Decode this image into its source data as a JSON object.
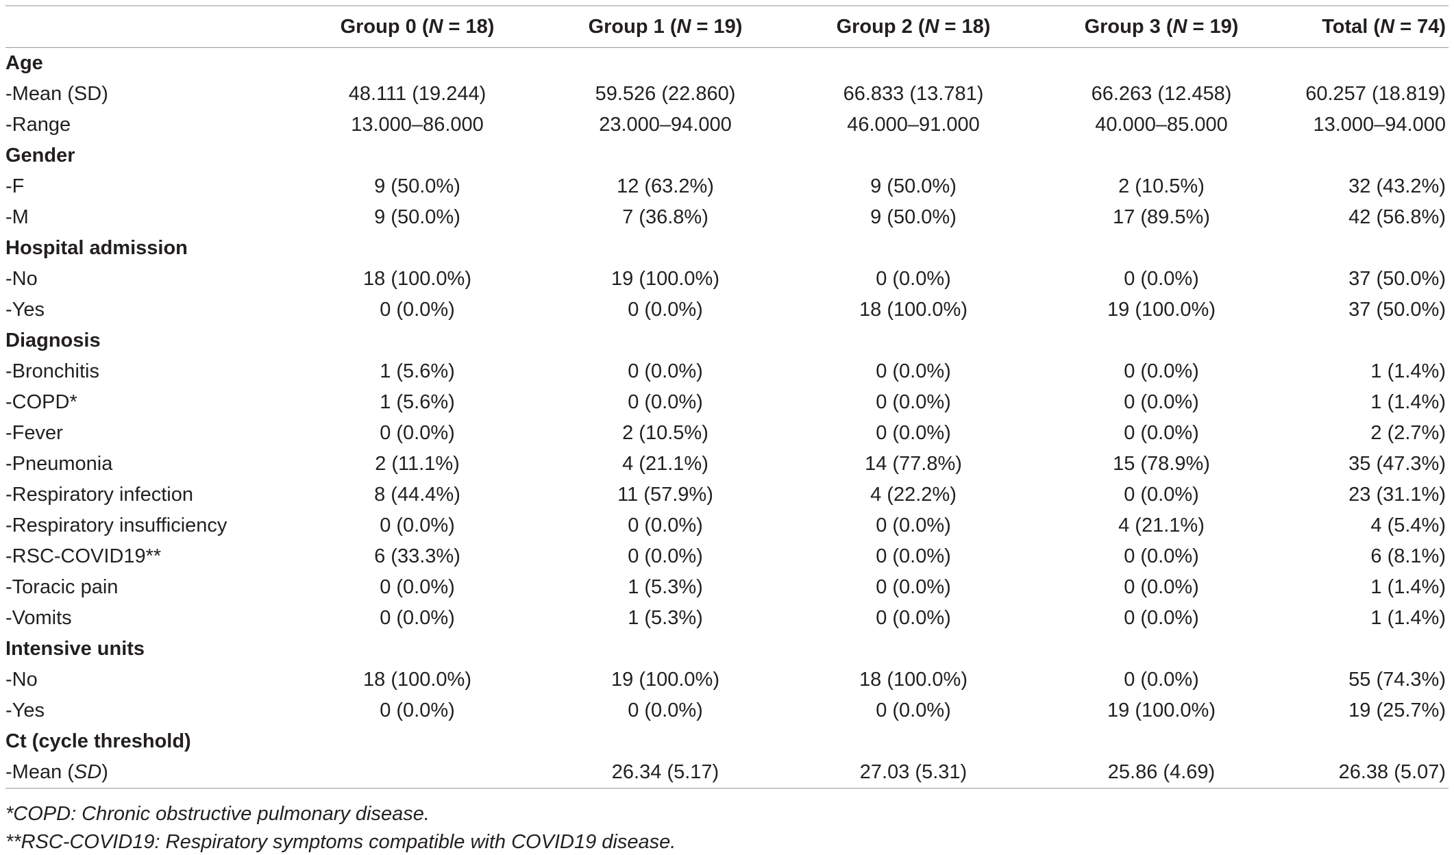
{
  "columns": {
    "group0": {
      "label": "Group 0 (",
      "n_letter": "N",
      "n_rest": " = 18)"
    },
    "group1": {
      "label": "Group 1 (",
      "n_letter": "N",
      "n_rest": " = 19)"
    },
    "group2": {
      "label": "Group 2 (",
      "n_letter": "N",
      "n_rest": " = 18)"
    },
    "group3": {
      "label": "Group 3 (",
      "n_letter": "N",
      "n_rest": " = 19)"
    },
    "total": {
      "label": "Total (",
      "n_letter": "N",
      "n_rest": " = 74)"
    }
  },
  "rows": [
    {
      "type": "section",
      "label": "Age"
    },
    {
      "type": "data",
      "label": "-Mean (SD)",
      "values": [
        "48.111 (19.244)",
        "59.526 (22.860)",
        "66.833 (13.781)",
        "66.263 (12.458)",
        "60.257 (18.819)"
      ]
    },
    {
      "type": "data",
      "label": "-Range",
      "values": [
        "13.000–86.000",
        "23.000–94.000",
        "46.000–91.000",
        "40.000–85.000",
        "13.000–94.000"
      ]
    },
    {
      "type": "section",
      "label": "Gender"
    },
    {
      "type": "data",
      "label": "-F",
      "values": [
        "9 (50.0%)",
        "12 (63.2%)",
        "9 (50.0%)",
        "2 (10.5%)",
        "32 (43.2%)"
      ]
    },
    {
      "type": "data",
      "label": "-M",
      "values": [
        "9 (50.0%)",
        "7 (36.8%)",
        "9 (50.0%)",
        "17 (89.5%)",
        "42 (56.8%)"
      ]
    },
    {
      "type": "section",
      "label": "Hospital admission"
    },
    {
      "type": "data",
      "label": "-No",
      "values": [
        "18 (100.0%)",
        "19 (100.0%)",
        "0 (0.0%)",
        "0 (0.0%)",
        "37 (50.0%)"
      ]
    },
    {
      "type": "data",
      "label": "-Yes",
      "values": [
        "0 (0.0%)",
        "0 (0.0%)",
        "18 (100.0%)",
        "19 (100.0%)",
        "37 (50.0%)"
      ]
    },
    {
      "type": "section",
      "label": "Diagnosis"
    },
    {
      "type": "data",
      "label": "-Bronchitis",
      "values": [
        "1 (5.6%)",
        "0 (0.0%)",
        "0 (0.0%)",
        "0 (0.0%)",
        "1 (1.4%)"
      ]
    },
    {
      "type": "data",
      "label": "-COPD*",
      "values": [
        "1 (5.6%)",
        "0 (0.0%)",
        "0 (0.0%)",
        "0 (0.0%)",
        "1 (1.4%)"
      ]
    },
    {
      "type": "data",
      "label": "-Fever",
      "values": [
        "0 (0.0%)",
        "2 (10.5%)",
        "0 (0.0%)",
        "0 (0.0%)",
        "2 (2.7%)"
      ]
    },
    {
      "type": "data",
      "label": "-Pneumonia",
      "values": [
        "2 (11.1%)",
        "4 (21.1%)",
        "14 (77.8%)",
        "15 (78.9%)",
        "35 (47.3%)"
      ]
    },
    {
      "type": "data",
      "label": "-Respiratory infection",
      "values": [
        "8 (44.4%)",
        "11 (57.9%)",
        "4 (22.2%)",
        "0 (0.0%)",
        "23 (31.1%)"
      ]
    },
    {
      "type": "data",
      "label": "-Respiratory insufficiency",
      "values": [
        "0 (0.0%)",
        "0 (0.0%)",
        "0 (0.0%)",
        "4 (21.1%)",
        "4 (5.4%)"
      ]
    },
    {
      "type": "data",
      "label": "-RSC-COVID19**",
      "values": [
        "6 (33.3%)",
        "0 (0.0%)",
        "0 (0.0%)",
        "0 (0.0%)",
        "6 (8.1%)"
      ]
    },
    {
      "type": "data",
      "label": "-Toracic pain",
      "values": [
        "0 (0.0%)",
        "1 (5.3%)",
        "0 (0.0%)",
        "0 (0.0%)",
        "1 (1.4%)"
      ]
    },
    {
      "type": "data",
      "label": "-Vomits",
      "values": [
        "0 (0.0%)",
        "1 (5.3%)",
        "0 (0.0%)",
        "0 (0.0%)",
        "1 (1.4%)"
      ]
    },
    {
      "type": "section",
      "label": "Intensive units"
    },
    {
      "type": "data",
      "label": "-No",
      "values": [
        "18 (100.0%)",
        "19 (100.0%)",
        "18 (100.0%)",
        "0 (0.0%)",
        "55 (74.3%)"
      ]
    },
    {
      "type": "data",
      "label": "-Yes",
      "values": [
        "0 (0.0%)",
        "0 (0.0%)",
        "0 (0.0%)",
        "19 (100.0%)",
        "19 (25.7%)"
      ]
    },
    {
      "type": "section",
      "label": "Ct (cycle threshold)"
    },
    {
      "type": "data",
      "label_pre": "-Mean (",
      "label_ital": "SD",
      "label_post": ")",
      "values": [
        "",
        "26.34 (5.17)",
        "27.03 (5.31)",
        "25.86 (4.69)",
        "26.38 (5.07)"
      ]
    }
  ],
  "footnotes": [
    "*COPD: Chronic obstructive pulmonary disease.",
    "**RSC-COVID19: Respiratory symptoms compatible with COVID19 disease."
  ]
}
